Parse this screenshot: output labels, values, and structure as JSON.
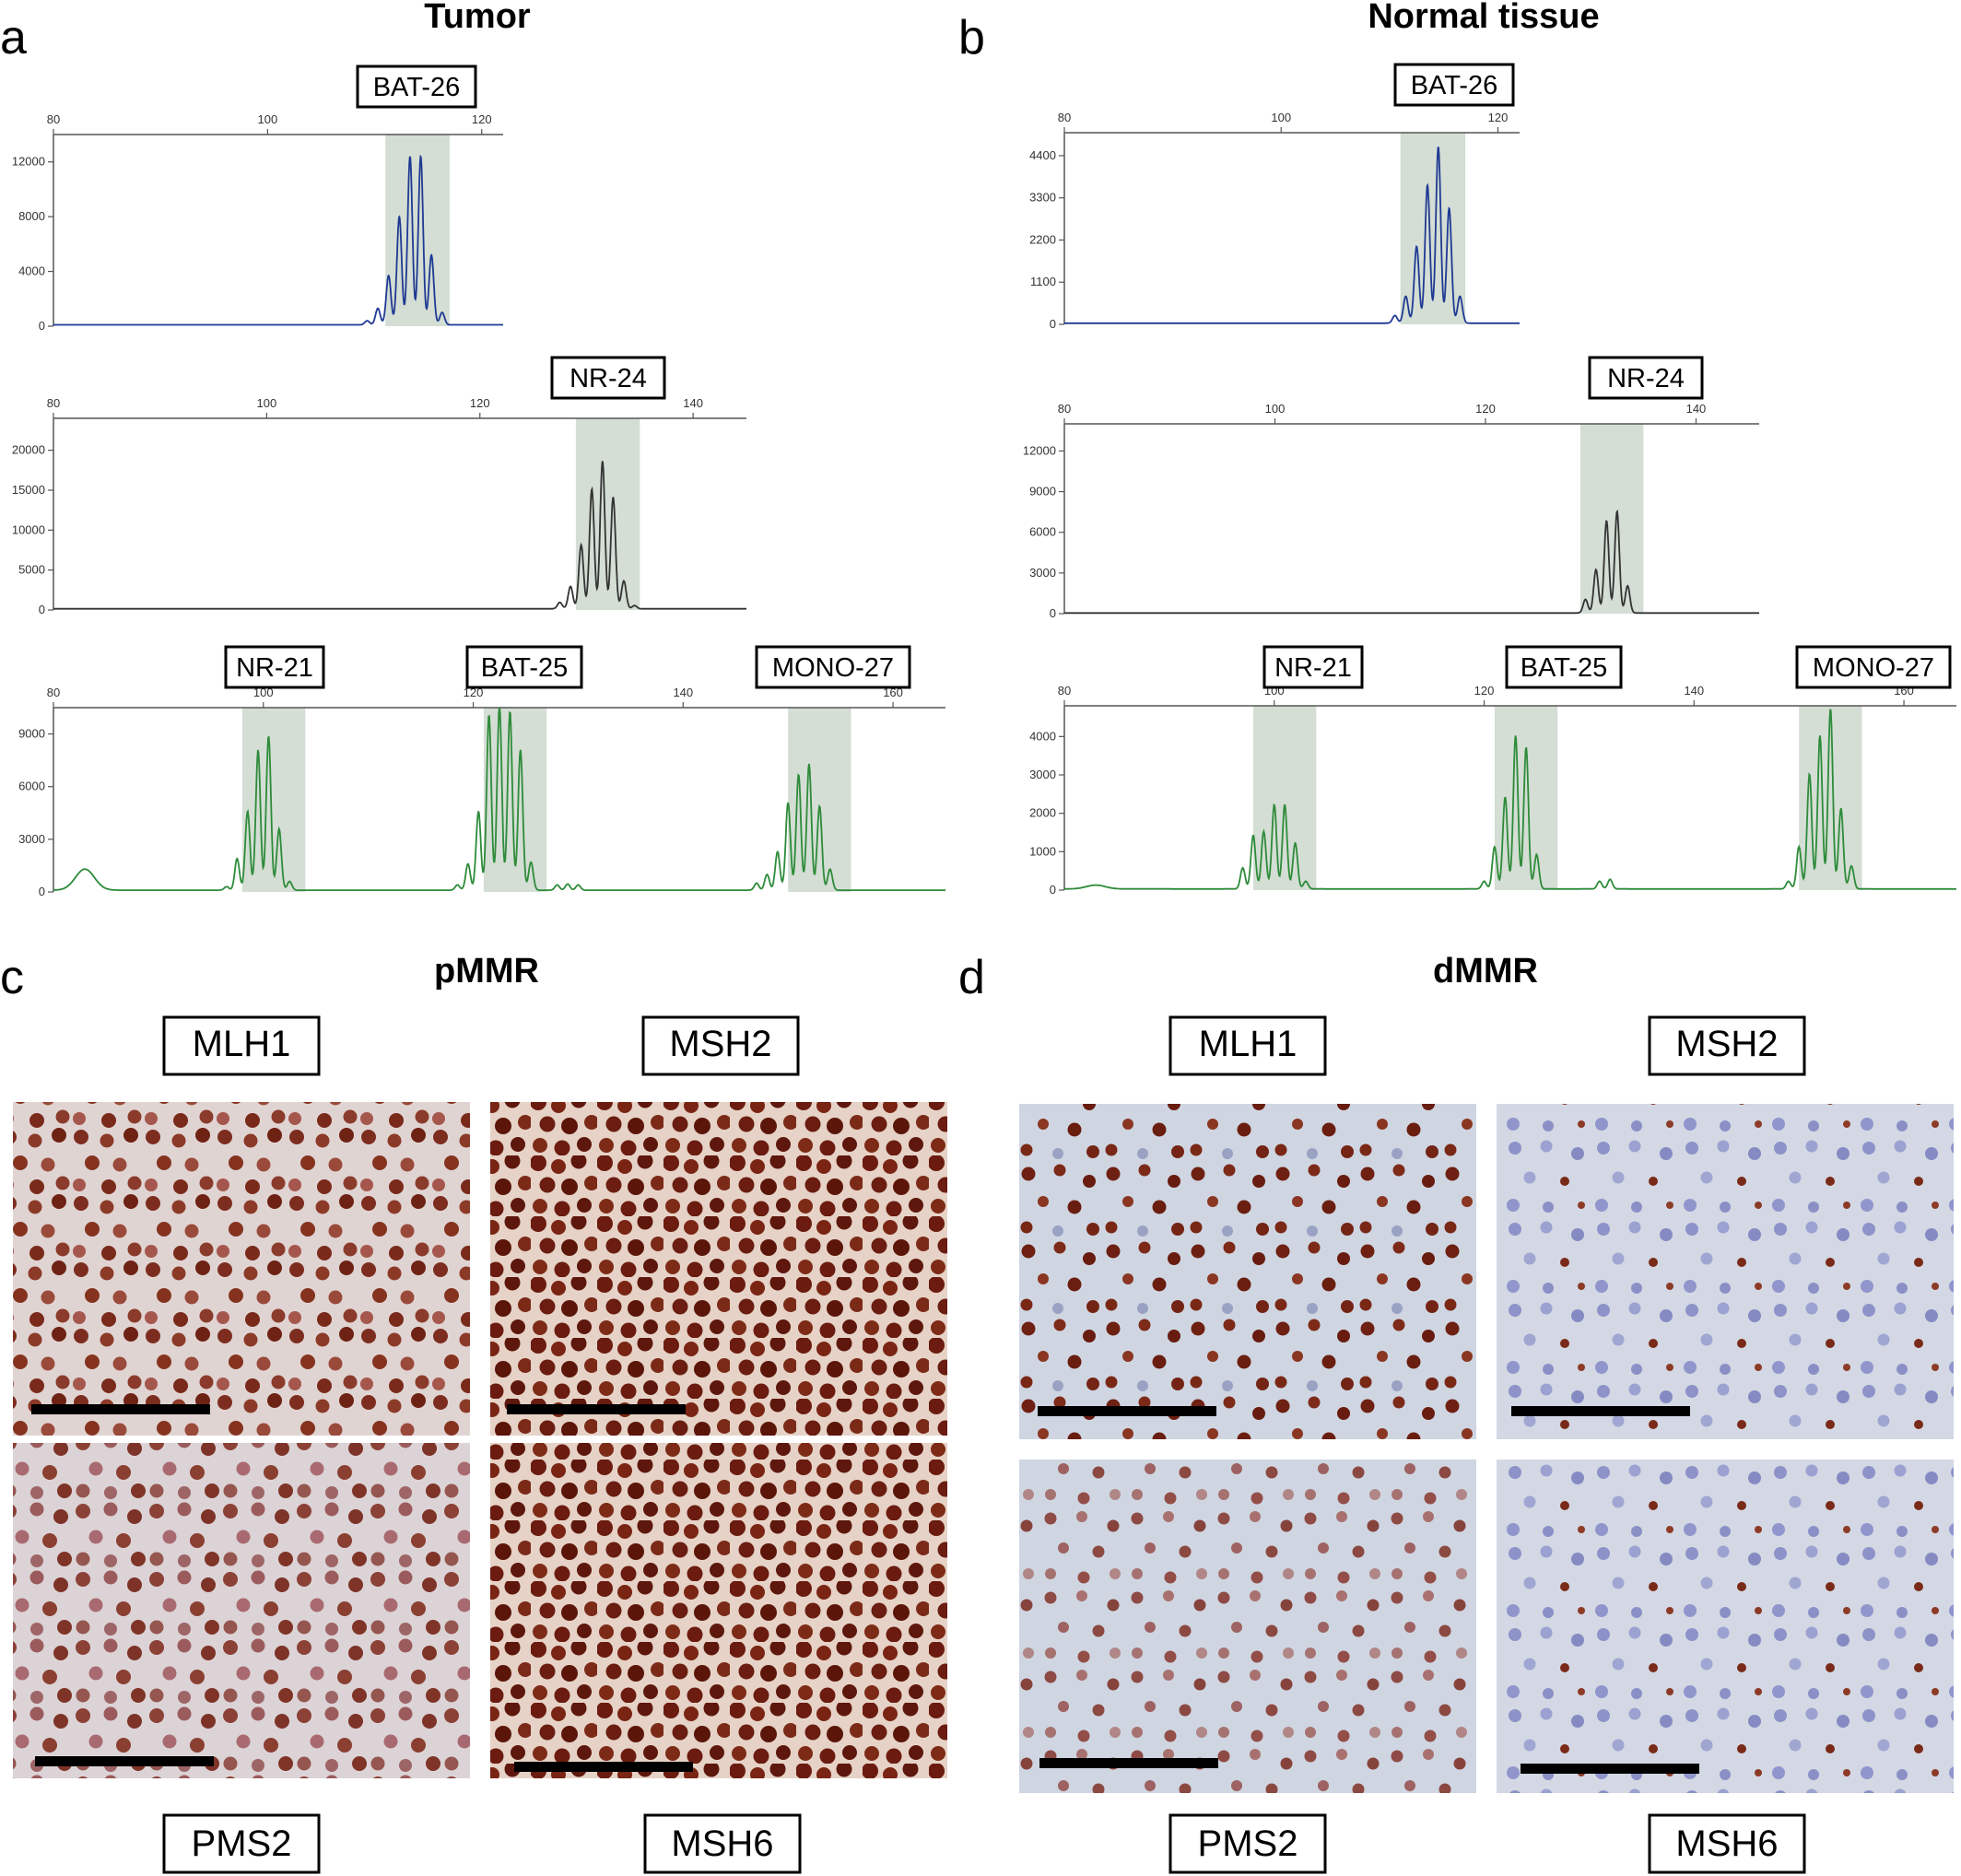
{
  "panels": {
    "a": {
      "letter": "a",
      "title": "Tumor"
    },
    "b": {
      "letter": "b",
      "title": "Normal tissue"
    },
    "c": {
      "letter": "c",
      "title": "pMMR"
    },
    "d": {
      "letter": "d",
      "title": "dMMR"
    }
  },
  "stains": {
    "c": {
      "tl": "MLH1",
      "tr": "MSH2",
      "bl": "PMS2",
      "br": "MSH6"
    },
    "d": {
      "tl": "MLH1",
      "tr": "MSH2",
      "bl": "PMS2",
      "br": "MSH6"
    }
  },
  "chart_data": [
    {
      "id": "a1",
      "type": "line",
      "panel": "a",
      "markers": [
        "BAT-26"
      ],
      "series_color": "#1f3a93",
      "xticks": [
        80,
        100,
        120
      ],
      "yticks": [
        0,
        4000,
        8000,
        12000
      ],
      "xlim": [
        80,
        122
      ],
      "ylim": [
        0,
        14000
      ],
      "highlight": [
        [
          111,
          117
        ]
      ],
      "peaks": [
        [
          109.3,
          300
        ],
        [
          110.3,
          1200
        ],
        [
          111.3,
          3600
        ],
        [
          112.3,
          7900
        ],
        [
          113.3,
          12300
        ],
        [
          114.3,
          12300
        ],
        [
          115.3,
          5100
        ],
        [
          116.3,
          900
        ]
      ],
      "baseline": 100
    },
    {
      "id": "a2",
      "type": "line",
      "panel": "a",
      "markers": [
        "NR-24"
      ],
      "series_color": "#333333",
      "xticks": [
        80,
        100,
        120,
        140
      ],
      "yticks": [
        0,
        5000,
        10000,
        15000,
        20000
      ],
      "xlim": [
        80,
        145
      ],
      "ylim": [
        0,
        24000
      ],
      "highlight": [
        [
          129,
          135
        ]
      ],
      "peaks": [
        [
          127.5,
          800
        ],
        [
          128.5,
          2800
        ],
        [
          129.5,
          8000
        ],
        [
          130.5,
          15000
        ],
        [
          131.5,
          18500
        ],
        [
          132.5,
          14000
        ],
        [
          133.5,
          3500
        ],
        [
          134.5,
          400
        ]
      ],
      "baseline": 150
    },
    {
      "id": "a3",
      "type": "line",
      "panel": "a",
      "markers": [
        "NR-21",
        "BAT-25",
        "MONO-27"
      ],
      "series_color": "#2e8b3a",
      "xticks": [
        80,
        100,
        120,
        140,
        160
      ],
      "yticks": [
        0,
        3000,
        6000,
        9000
      ],
      "xlim": [
        80,
        165
      ],
      "ylim": [
        0,
        10500
      ],
      "highlight": [
        [
          98,
          104
        ],
        [
          121,
          127
        ],
        [
          150,
          156
        ]
      ],
      "peaks": [
        [
          83,
          1200
        ],
        [
          96.5,
          200
        ],
        [
          97.5,
          1800
        ],
        [
          98.5,
          4500
        ],
        [
          99.5,
          8000
        ],
        [
          100.5,
          8800
        ],
        [
          101.5,
          3500
        ],
        [
          102.5,
          500
        ],
        [
          118.5,
          300
        ],
        [
          119.5,
          1500
        ],
        [
          120.5,
          4500
        ],
        [
          121.5,
          10000
        ],
        [
          122.5,
          10500
        ],
        [
          123.5,
          10200
        ],
        [
          124.5,
          8000
        ],
        [
          125.5,
          1600
        ],
        [
          128,
          300
        ],
        [
          129,
          350
        ],
        [
          130,
          300
        ],
        [
          147,
          400
        ],
        [
          148,
          900
        ],
        [
          149,
          2200
        ],
        [
          150,
          5000
        ],
        [
          151,
          6600
        ],
        [
          152,
          7200
        ],
        [
          153,
          4800
        ],
        [
          154,
          1200
        ]
      ],
      "baseline": 100
    },
    {
      "id": "b1",
      "type": "line",
      "panel": "b",
      "markers": [
        "BAT-26"
      ],
      "series_color": "#1f3a93",
      "xticks": [
        80,
        100,
        120
      ],
      "yticks": [
        0,
        1100,
        2200,
        3300,
        4400
      ],
      "xlim": [
        80,
        122
      ],
      "ylim": [
        0,
        5000
      ],
      "highlight": [
        [
          111,
          117
        ]
      ],
      "peaks": [
        [
          110.5,
          200
        ],
        [
          111.5,
          700
        ],
        [
          112.5,
          2000
        ],
        [
          113.5,
          3600
        ],
        [
          114.5,
          4600
        ],
        [
          115.5,
          3000
        ],
        [
          116.5,
          700
        ]
      ],
      "baseline": 30
    },
    {
      "id": "b2",
      "type": "line",
      "panel": "b",
      "markers": [
        "NR-24"
      ],
      "series_color": "#333333",
      "xticks": [
        80,
        100,
        120,
        140
      ],
      "yticks": [
        0,
        3000,
        6000,
        9000,
        12000
      ],
      "xlim": [
        80,
        146
      ],
      "ylim": [
        0,
        14000
      ],
      "highlight": [
        [
          129,
          135
        ]
      ],
      "peaks": [
        [
          129.5,
          1000
        ],
        [
          130.5,
          3200
        ],
        [
          131.5,
          6800
        ],
        [
          132.5,
          7500
        ],
        [
          133.5,
          2000
        ]
      ],
      "baseline": 50
    },
    {
      "id": "b3",
      "type": "line",
      "panel": "b",
      "markers": [
        "NR-21",
        "BAT-25",
        "MONO-27"
      ],
      "series_color": "#2e8b3a",
      "xticks": [
        80,
        100,
        120,
        140,
        160
      ],
      "yticks": [
        0,
        1000,
        2000,
        3000,
        4000
      ],
      "xlim": [
        80,
        165
      ],
      "ylim": [
        0,
        4800
      ],
      "highlight": [
        [
          98,
          104
        ],
        [
          121,
          127
        ],
        [
          150,
          156
        ]
      ],
      "peaks": [
        [
          83,
          100
        ],
        [
          97,
          550
        ],
        [
          98,
          1400
        ],
        [
          99,
          1500
        ],
        [
          100,
          2200
        ],
        [
          101,
          2200
        ],
        [
          102,
          1200
        ],
        [
          103,
          200
        ],
        [
          120,
          200
        ],
        [
          121,
          1100
        ],
        [
          122,
          2400
        ],
        [
          123,
          4000
        ],
        [
          124,
          3700
        ],
        [
          125,
          900
        ],
        [
          131,
          200
        ],
        [
          132,
          250
        ],
        [
          149,
          200
        ],
        [
          150,
          1100
        ],
        [
          151,
          3000
        ],
        [
          152,
          4000
        ],
        [
          153,
          4700
        ],
        [
          154,
          2100
        ],
        [
          155,
          600
        ]
      ],
      "baseline": 30
    }
  ]
}
